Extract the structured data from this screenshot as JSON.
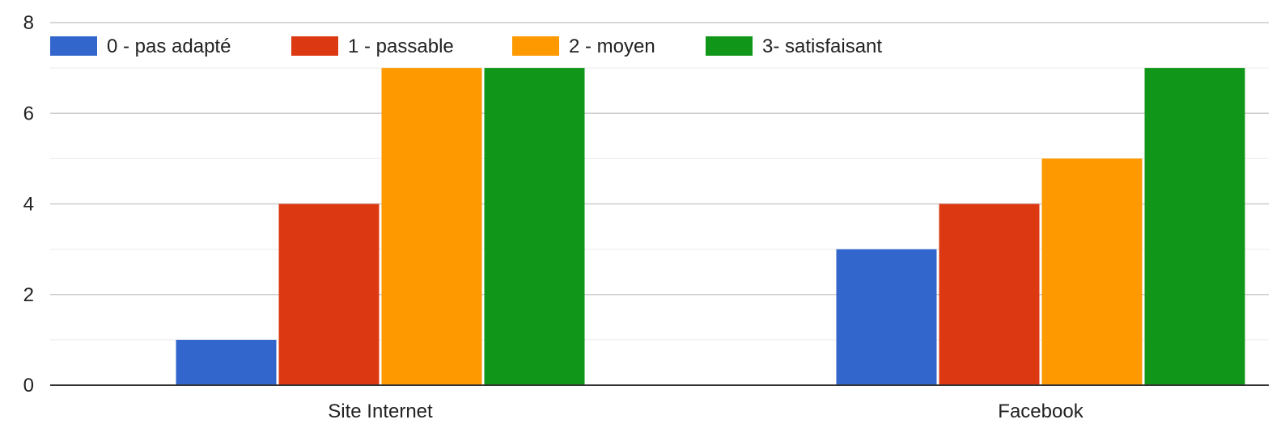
{
  "chart_data": {
    "type": "bar",
    "categories": [
      "Site Internet",
      "Facebook"
    ],
    "series": [
      {
        "name": "0 - pas adapté",
        "color": "#3366cc",
        "values": [
          1,
          3
        ]
      },
      {
        "name": "1 - passable",
        "color": "#dc3912",
        "values": [
          4,
          4
        ]
      },
      {
        "name": "2 - moyen",
        "color": "#ff9900",
        "values": [
          7,
          5
        ]
      },
      {
        "name": "3- satisfaisant",
        "color": "#109618",
        "values": [
          7,
          7
        ]
      }
    ],
    "yticks": [
      "0",
      "2",
      "4",
      "6",
      "8"
    ],
    "ylim": [
      0,
      8
    ],
    "title": "",
    "xlabel": "",
    "ylabel": "",
    "grid": true,
    "legend_position": "top-left"
  }
}
